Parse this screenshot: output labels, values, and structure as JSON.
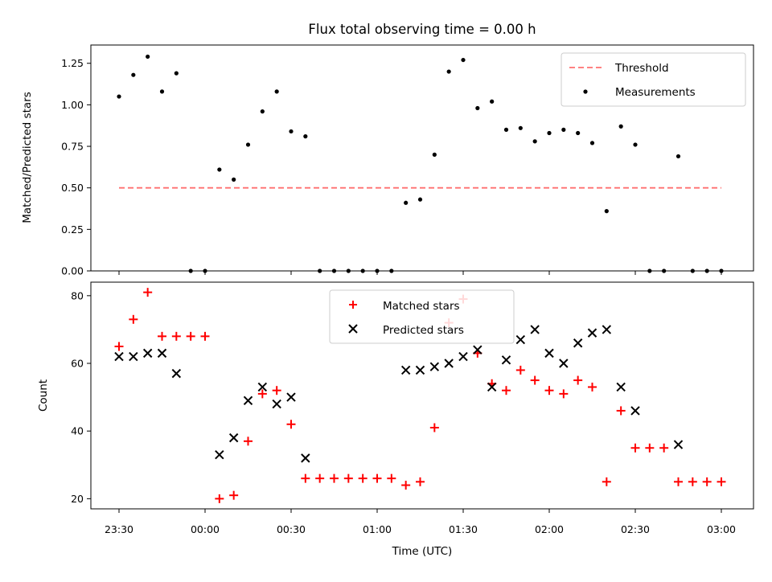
{
  "chart_data": [
    {
      "type": "scatter",
      "title": "Flux total observing time = 0.00 h",
      "xlabel": "",
      "ylabel": "Matched/Predicted stars",
      "ylim": [
        0,
        1.36
      ],
      "yticks": [
        "0.00",
        "0.25",
        "0.50",
        "0.75",
        "1.00",
        "1.25"
      ],
      "legend_position": "top-right",
      "threshold": {
        "name": "Threshold",
        "value": 0.5,
        "x_start": "23:30",
        "x_end": "03:00",
        "color": "#ff7070"
      },
      "series": [
        {
          "name": "Measurements",
          "color": "#000000",
          "x": [
            "23:30",
            "23:35",
            "23:40",
            "23:45",
            "23:50",
            "23:55",
            "00:00",
            "00:05",
            "00:10",
            "00:15",
            "00:20",
            "00:25",
            "00:30",
            "00:35",
            "00:40",
            "00:45",
            "00:50",
            "00:55",
            "01:00",
            "01:05",
            "01:10",
            "01:15",
            "01:20",
            "01:25",
            "01:30",
            "01:35",
            "01:40",
            "01:45",
            "01:50",
            "01:55",
            "02:00",
            "02:05",
            "02:10",
            "02:15",
            "02:20",
            "02:25",
            "02:30",
            "02:35",
            "02:40",
            "02:45",
            "02:50",
            "02:55",
            "03:00"
          ],
          "values": [
            1.05,
            1.18,
            1.29,
            1.08,
            1.19,
            0.0,
            0.0,
            0.61,
            0.55,
            0.76,
            0.96,
            1.08,
            0.84,
            0.81,
            0.0,
            0.0,
            0.0,
            0.0,
            0.0,
            0.0,
            0.41,
            0.43,
            0.7,
            1.2,
            1.27,
            0.98,
            1.02,
            0.85,
            0.86,
            0.78,
            0.83,
            0.85,
            0.83,
            0.77,
            0.36,
            0.87,
            0.76,
            0.0,
            0.0,
            0.69,
            0.0,
            0.0,
            0.0
          ]
        }
      ]
    },
    {
      "type": "scatter",
      "title": "",
      "xlabel": "Time (UTC)",
      "ylabel": "Count",
      "ylim": [
        17,
        84
      ],
      "yticks": [
        "20",
        "40",
        "60",
        "80"
      ],
      "xticks": [
        "23:30",
        "00:00",
        "00:30",
        "01:00",
        "01:30",
        "02:00",
        "02:30",
        "03:00"
      ],
      "legend_position": "top-center",
      "series": [
        {
          "name": "Matched stars",
          "marker": "plus",
          "color": "#ff0000",
          "x": [
            "23:30",
            "23:35",
            "23:40",
            "23:45",
            "23:50",
            "23:55",
            "00:00",
            "00:05",
            "00:10",
            "00:15",
            "00:20",
            "00:25",
            "00:30",
            "00:35",
            "00:40",
            "00:45",
            "00:50",
            "00:55",
            "01:00",
            "01:05",
            "01:10",
            "01:15",
            "01:20",
            "01:25",
            "01:30",
            "01:35",
            "01:40",
            "01:45",
            "01:50",
            "01:55",
            "02:00",
            "02:05",
            "02:10",
            "02:15",
            "02:20",
            "02:25",
            "02:30",
            "02:35",
            "02:40",
            "02:45",
            "02:50",
            "02:55",
            "03:00"
          ],
          "values": [
            65,
            73,
            81,
            68,
            68,
            68,
            68,
            20,
            21,
            37,
            51,
            52,
            42,
            26,
            26,
            26,
            26,
            26,
            26,
            26,
            24,
            25,
            41,
            72,
            79,
            63,
            54,
            52,
            58,
            55,
            52,
            51,
            55,
            53,
            25,
            46,
            35,
            35,
            35,
            25,
            25,
            25,
            25
          ]
        },
        {
          "name": "Predicted stars",
          "marker": "x",
          "color": "#000000",
          "x": [
            "23:30",
            "23:35",
            "23:40",
            "23:45",
            "23:50",
            "00:05",
            "00:10",
            "00:15",
            "00:20",
            "00:25",
            "00:30",
            "00:35",
            "01:10",
            "01:15",
            "01:20",
            "01:25",
            "01:30",
            "01:35",
            "01:40",
            "01:45",
            "01:50",
            "01:55",
            "02:00",
            "02:05",
            "02:10",
            "02:15",
            "02:20",
            "02:25",
            "02:30",
            "02:45"
          ],
          "values": [
            62,
            62,
            63,
            63,
            57,
            33,
            38,
            49,
            53,
            48,
            50,
            32,
            58,
            58,
            59,
            60,
            62,
            64,
            53,
            61,
            67,
            70,
            63,
            60,
            66,
            69,
            70,
            53,
            46,
            36
          ]
        }
      ]
    }
  ]
}
